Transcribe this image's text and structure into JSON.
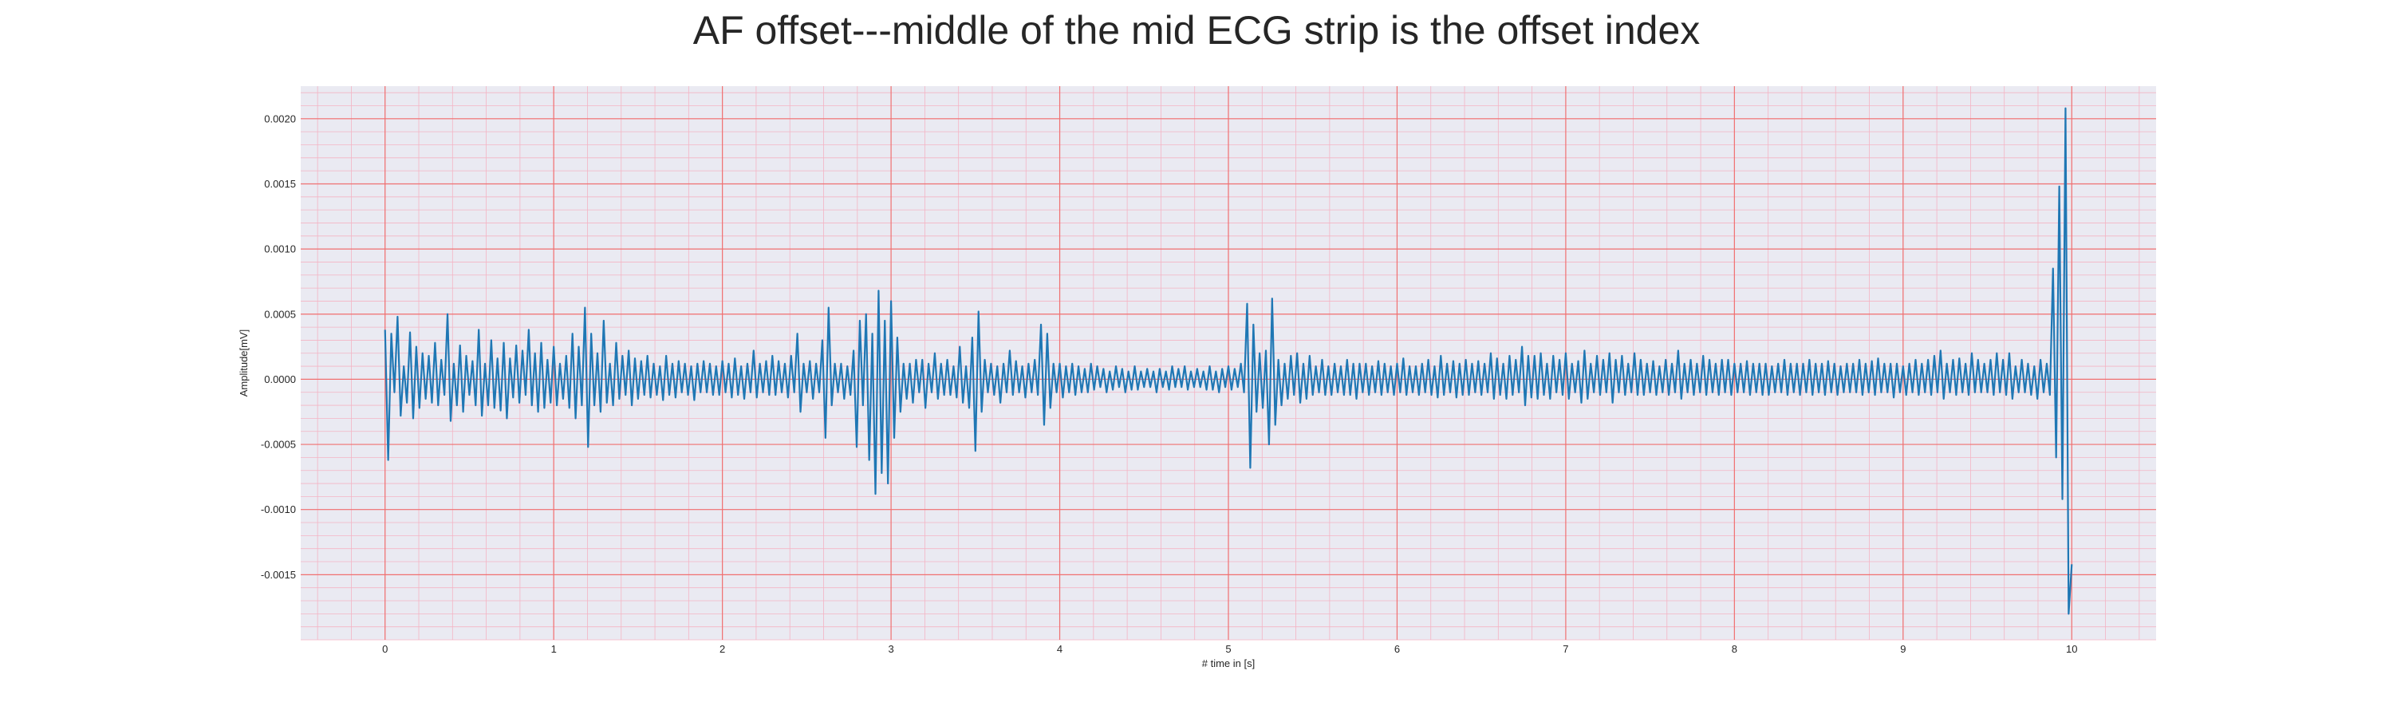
{
  "chart_data": {
    "type": "line",
    "title": "AF offset---middle of the mid ECG strip is the offset index",
    "xlabel": "# time in [s]",
    "ylabel": "Amplitude[mV]",
    "xlim": [
      -0.5,
      10.5
    ],
    "ylim": [
      -0.002,
      0.00225
    ],
    "xticks": [
      0,
      1,
      2,
      3,
      4,
      5,
      6,
      7,
      8,
      9,
      10
    ],
    "xtick_labels": [
      "0",
      "1",
      "2",
      "3",
      "4",
      "5",
      "6",
      "7",
      "8",
      "9",
      "10"
    ],
    "yticks": [
      -0.0015,
      -0.001,
      -0.0005,
      0.0,
      0.0005,
      0.001,
      0.0015,
      0.002
    ],
    "ytick_labels": [
      "-0.0015",
      "-0.0010",
      "-0.0005",
      "0.0000",
      "0.0005",
      "0.0010",
      "0.0015",
      "0.0020"
    ],
    "grid": true,
    "series": [
      {
        "color": "#1f77b4",
        "x_start": 0.0,
        "x_step": 0.02,
        "values": [
          0.00038,
          -0.00062,
          0.00035,
          -0.0001,
          0.00048,
          -0.00028,
          0.0001,
          -0.00018,
          0.00036,
          -0.0003,
          0.00025,
          -0.00022,
          0.0002,
          -0.00015,
          0.00018,
          -0.00018,
          0.00028,
          -0.0002,
          0.00015,
          -0.00012,
          0.0005,
          -0.00032,
          0.00012,
          -0.0002,
          0.00026,
          -0.00025,
          0.00018,
          -0.00012,
          0.00014,
          -0.0002,
          0.00038,
          -0.00028,
          0.00012,
          -0.0002,
          0.0003,
          -0.00022,
          0.00016,
          -0.00024,
          0.00028,
          -0.0003,
          0.00016,
          -0.00014,
          0.00026,
          -0.00018,
          0.00022,
          -0.00012,
          0.00038,
          -0.0002,
          0.0002,
          -0.00025,
          0.00028,
          -0.00022,
          0.00015,
          -0.00018,
          0.00025,
          -0.0002,
          0.00012,
          -0.00015,
          0.00018,
          -0.00022,
          0.00035,
          -0.0003,
          0.00025,
          -0.0002,
          0.00055,
          -0.00052,
          0.00035,
          -0.0002,
          0.0002,
          -0.00025,
          0.00045,
          -0.00018,
          0.00012,
          -0.0002,
          0.00028,
          -0.00015,
          0.00018,
          -0.00012,
          0.00022,
          -0.0002,
          0.00016,
          -0.00015,
          0.00014,
          -0.00012,
          0.00018,
          -0.00014,
          0.00012,
          -0.00012,
          0.0001,
          -0.00016,
          0.00018,
          -0.00012,
          0.00012,
          -0.00014,
          0.00014,
          -0.0001,
          0.00012,
          -0.00012,
          0.0001,
          -0.00016,
          0.00012,
          -0.0001,
          0.00014,
          -0.0001,
          0.00012,
          -0.00012,
          0.0001,
          -0.00012,
          0.00014,
          -0.0001,
          0.00012,
          -0.00014,
          0.00016,
          -0.00012,
          0.0001,
          -0.00015,
          0.00012,
          -0.0001,
          0.00022,
          -0.00014,
          0.00012,
          -0.0001,
          0.00014,
          -0.00012,
          0.00018,
          -0.00012,
          0.00014,
          -0.0001,
          0.00012,
          -0.00014,
          0.00018,
          -0.0001,
          0.00035,
          -0.00025,
          0.00012,
          -0.0001,
          0.00014,
          -0.00015,
          0.00012,
          -0.0001,
          0.0003,
          -0.00045,
          0.00055,
          -0.0002,
          0.00012,
          -0.0001,
          0.00012,
          -0.00015,
          0.0001,
          -0.00012,
          0.00022,
          -0.00052,
          0.00045,
          -0.0002,
          0.0005,
          -0.00062,
          0.00035,
          -0.00088,
          0.00068,
          -0.00072,
          0.00045,
          -0.0008,
          0.0006,
          -0.00045,
          0.00032,
          -0.00025,
          0.00012,
          -0.00015,
          0.00012,
          -0.00018,
          0.00015,
          -0.0001,
          0.00015,
          -0.00022,
          0.00012,
          -0.0001,
          0.0002,
          -0.00015,
          0.00012,
          -0.00012,
          0.00015,
          -0.00012,
          0.0001,
          -0.00014,
          0.00025,
          -0.00018,
          0.0001,
          -0.00022,
          0.00032,
          -0.00055,
          0.00052,
          -0.00025,
          0.00015,
          -0.0001,
          0.00012,
          -0.00012,
          0.0001,
          -0.00018,
          0.00012,
          -0.0001,
          0.00022,
          -0.00012,
          0.00014,
          -0.0001,
          0.0001,
          -0.00014,
          0.00012,
          -0.0001,
          0.00015,
          -0.00012,
          0.00042,
          -0.00035,
          0.00035,
          -0.00022,
          0.00012,
          -0.0001,
          0.00012,
          -0.00014,
          0.0001,
          -0.0001,
          0.00012,
          -0.00012,
          0.0001,
          -0.0001,
          8e-05,
          -0.0001,
          0.00012,
          -8e-05,
          0.0001,
          -6e-05,
          8e-05,
          -0.0001,
          6e-05,
          -8e-05,
          0.0001,
          -6e-05,
          8e-05,
          -0.0001,
          6e-05,
          -8e-05,
          0.0001,
          -8e-05,
          6e-05,
          -6e-05,
          8e-05,
          -6e-05,
          6e-05,
          -0.0001,
          8e-05,
          -6e-05,
          6e-05,
          -8e-05,
          0.0001,
          -6e-05,
          8e-05,
          -6e-05,
          0.0001,
          -8e-05,
          6e-05,
          -6e-05,
          8e-05,
          -6e-05,
          6e-05,
          -8e-05,
          0.0001,
          -8e-05,
          6e-05,
          -0.0001,
          8e-05,
          -6e-05,
          0.0001,
          -8e-05,
          8e-05,
          -6e-05,
          0.00012,
          -0.0001,
          0.00058,
          -0.00068,
          0.00042,
          -0.00025,
          0.0002,
          -0.00022,
          0.00022,
          -0.0005,
          0.00062,
          -0.00035,
          0.00015,
          -0.0002,
          0.00012,
          -0.00015,
          0.00018,
          -0.00012,
          0.0002,
          -0.00018,
          0.00012,
          -0.00015,
          0.00018,
          -0.00012,
          0.0001,
          -0.0001,
          0.00015,
          -0.00012,
          0.0001,
          -0.00012,
          0.00012,
          -0.0001,
          0.0001,
          -0.00012,
          0.00015,
          -0.00012,
          0.00012,
          -0.00015,
          0.00012,
          -0.0001,
          0.00012,
          -0.00012,
          0.0001,
          -0.0001,
          0.00014,
          -0.00012,
          0.00012,
          -0.0001,
          0.0001,
          -0.00012,
          0.00012,
          -0.0001,
          0.00016,
          -0.00012,
          0.0001,
          -0.0001,
          0.0001,
          -0.00012,
          0.00012,
          -0.0001,
          0.00015,
          -0.00012,
          0.0001,
          -0.00014,
          0.00018,
          -0.00012,
          0.00012,
          -0.0001,
          0.00014,
          -0.00014,
          0.00012,
          -0.00012,
          0.00015,
          -0.00012,
          0.00012,
          -0.0001,
          0.00014,
          -0.00012,
          0.00012,
          -0.0001,
          0.0002,
          -0.00015,
          0.00016,
          -0.00012,
          0.00012,
          -0.00015,
          0.00018,
          -0.00012,
          0.00015,
          -0.0001,
          0.00025,
          -0.0002,
          0.00018,
          -0.00014,
          0.00018,
          -0.00015,
          0.0002,
          -0.00012,
          0.00012,
          -0.00015,
          0.00018,
          -0.0001,
          0.00015,
          -0.00012,
          0.0002,
          -0.00015,
          0.00012,
          -0.0001,
          0.00014,
          -0.00018,
          0.00022,
          -0.00015,
          0.00012,
          -0.0001,
          0.00018,
          -0.00012,
          0.00015,
          -0.0001,
          0.0002,
          -0.00018,
          0.00015,
          -0.0001,
          0.00018,
          -0.00012,
          0.00012,
          -0.0001,
          0.0002,
          -0.00012,
          0.00015,
          -0.00012,
          0.00012,
          -0.0001,
          0.00014,
          -0.00012,
          0.0001,
          -0.0001,
          0.00015,
          -0.00012,
          0.00012,
          -0.0001,
          0.00022,
          -0.00015,
          0.00012,
          -0.0001,
          0.00015,
          -0.00012,
          0.00012,
          -0.0001,
          0.00018,
          -0.00012,
          0.00015,
          -0.0001,
          0.00012,
          -0.00012,
          0.00015,
          -0.0001,
          0.00015,
          -0.00012,
          0.00012,
          -0.0001,
          0.00012,
          -0.0001,
          0.00014,
          -0.00012,
          0.00012,
          -0.0001,
          0.00012,
          -0.00012,
          0.00012,
          -0.00012,
          0.0001,
          -0.0001,
          0.00012,
          -0.0001,
          0.00015,
          -0.00012,
          0.00012,
          -0.0001,
          0.00012,
          -0.00012,
          0.00012,
          -0.0001,
          0.00015,
          -0.00012,
          0.00012,
          -0.0001,
          0.00012,
          -0.00012,
          0.00014,
          -0.0001,
          0.00012,
          -0.00012,
          0.0001,
          -0.0001,
          0.00012,
          -0.0001,
          0.00012,
          -0.0001,
          0.00015,
          -0.00012,
          0.00012,
          -0.0001,
          0.00014,
          -0.00012,
          0.00016,
          -0.0001,
          0.00012,
          -0.0001,
          0.00012,
          -0.00014,
          0.00012,
          -0.0001,
          0.0001,
          -0.00012,
          0.00012,
          -0.0001,
          0.00015,
          -0.00012,
          0.00012,
          -0.0001,
          0.00015,
          -0.00012,
          0.00018,
          -0.0001,
          0.00022,
          -0.00015,
          0.00012,
          -0.0001,
          0.00015,
          -0.00012,
          0.00016,
          -0.0001,
          0.00012,
          -0.00012,
          0.0002,
          -0.0001,
          0.00015,
          -0.0001,
          0.00012,
          -0.0001,
          0.00015,
          -0.00012,
          0.0002,
          -0.0001,
          0.00015,
          -0.00012,
          0.0002,
          -0.00015,
          0.0001,
          -0.0001,
          0.00015,
          -0.0001,
          0.00012,
          -0.00012,
          0.0001,
          -0.00015,
          0.00015,
          -0.0001,
          0.00012,
          -0.00012,
          0.00085,
          -0.0006,
          0.00148,
          -0.00092,
          0.00208,
          -0.0018,
          -0.00142
        ]
      }
    ]
  }
}
